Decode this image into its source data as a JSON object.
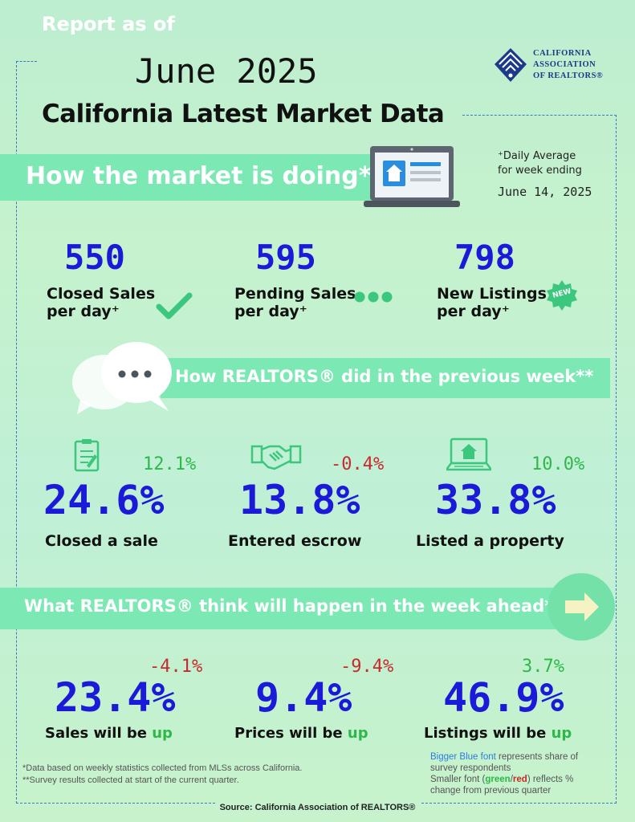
{
  "header": {
    "report_as_of": "Report as of",
    "date": "June 2025",
    "title": "California Latest Market Data",
    "logo_text": [
      "CALIFORNIA",
      "ASSOCIATION",
      "OF REALTORS®"
    ]
  },
  "market_section": {
    "banner": "How the market is doing*",
    "daily_note_line1": "⁺Daily Average",
    "daily_note_line2": "for week ending",
    "week_ending_date": "June 14, 2025",
    "stats": [
      {
        "value": "550",
        "label_line1": "Closed Sales",
        "label_line2": "per day⁺",
        "icon": "checkmark-icon"
      },
      {
        "value": "595",
        "label_line1": "Pending Sales",
        "label_line2": "per day⁺",
        "icon": "dots-icon"
      },
      {
        "value": "798",
        "label_line1": "New Listings",
        "label_line2": "per day⁺",
        "icon": "new-badge-icon",
        "badge": "NEW"
      }
    ]
  },
  "previous_week_section": {
    "banner": "How REALTORS® did in the previous week**",
    "stats": [
      {
        "value": "24.6%",
        "change": "12.1%",
        "direction": "up",
        "label": "Closed a sale",
        "icon": "clipboard-icon"
      },
      {
        "value": "13.8%",
        "change": "-0.4%",
        "direction": "down",
        "label": "Entered escrow",
        "icon": "handshake-icon"
      },
      {
        "value": "33.8%",
        "change": "10.0%",
        "direction": "up",
        "label": "Listed a property",
        "icon": "laptop-house-icon"
      }
    ]
  },
  "week_ahead_section": {
    "banner": "What REALTORS® think will happen in the week ahead**",
    "stats": [
      {
        "value": "23.4%",
        "change": "-4.1%",
        "direction": "down",
        "label_prefix": "Sales will be ",
        "label_suffix": "up"
      },
      {
        "value": "9.4%",
        "change": "-9.4%",
        "direction": "down",
        "label_prefix": "Prices will be ",
        "label_suffix": "up"
      },
      {
        "value": "46.9%",
        "change": "3.7%",
        "direction": "up",
        "label_prefix": "Listings will be ",
        "label_suffix": "up"
      }
    ]
  },
  "footnotes": {
    "line1": "*Data based on weekly statistics collected from MLSs across California.",
    "line2": "**Survey results collected at start of the current quarter.",
    "legend_blue": "Bigger Blue font",
    "legend_line1_rest": " represents share of",
    "legend_line2": "survey respondents",
    "legend_line3_prefix": "Smaller font (",
    "legend_green": "green",
    "legend_slash": "/",
    "legend_red": "red",
    "legend_line3_suffix": ") reflects %",
    "legend_line4": "change from previous quarter",
    "source": "Source: California Association of REALTORS®"
  },
  "colors": {
    "big_number": "#1a1ad8",
    "positive": "#2fb84a",
    "negative": "#c8292d",
    "banner": "#7ce8b4",
    "frame": "#3f74c8"
  }
}
